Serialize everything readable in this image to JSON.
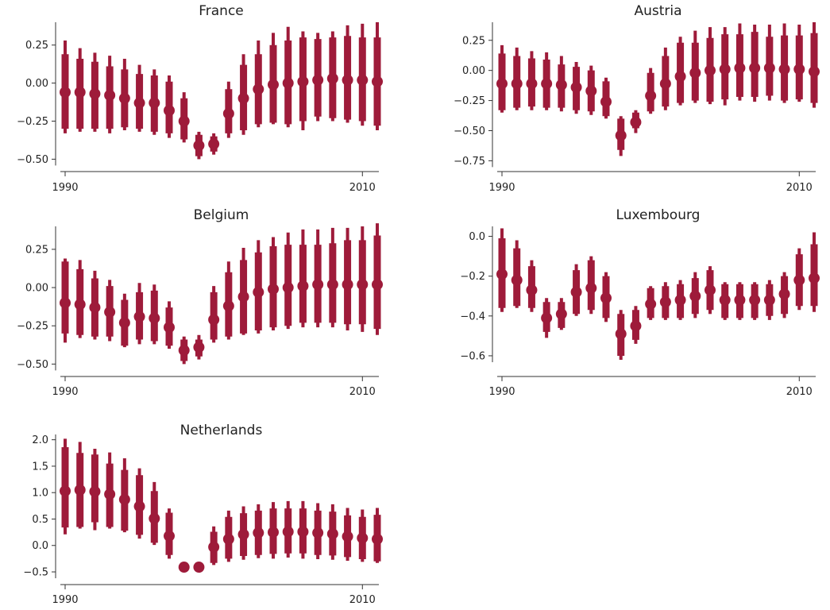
{
  "figure": {
    "accent_color": "#9e1b3a",
    "axis_color": "#333333"
  },
  "chart_data": [
    {
      "type": "scatter",
      "title": "France",
      "x": [
        1990,
        1991,
        1992,
        1993,
        1994,
        1995,
        1996,
        1997,
        1998,
        1999,
        2000,
        2001,
        2002,
        2003,
        2004,
        2005,
        2006,
        2007,
        2008,
        2009,
        2010,
        2011
      ],
      "y": [
        -0.06,
        -0.06,
        -0.07,
        -0.08,
        -0.1,
        -0.13,
        -0.13,
        -0.18,
        -0.25,
        -0.41,
        -0.4,
        -0.2,
        -0.1,
        -0.04,
        -0.01,
        0.0,
        0.01,
        0.02,
        0.03,
        0.02,
        0.02,
        0.01
      ],
      "inner_low": [
        -0.3,
        -0.3,
        -0.3,
        -0.3,
        -0.29,
        -0.3,
        -0.32,
        -0.33,
        -0.37,
        -0.48,
        -0.45,
        -0.33,
        -0.31,
        -0.27,
        -0.26,
        -0.27,
        -0.25,
        -0.22,
        -0.23,
        -0.24,
        -0.25,
        -0.28
      ],
      "inner_high": [
        0.19,
        0.16,
        0.14,
        0.11,
        0.09,
        0.06,
        0.05,
        0.01,
        -0.1,
        -0.34,
        -0.35,
        -0.04,
        0.12,
        0.19,
        0.25,
        0.28,
        0.3,
        0.29,
        0.3,
        0.31,
        0.3,
        0.3
      ],
      "outer_low": [
        -0.33,
        -0.32,
        -0.32,
        -0.33,
        -0.31,
        -0.32,
        -0.34,
        -0.36,
        -0.39,
        -0.5,
        -0.47,
        -0.36,
        -0.34,
        -0.29,
        -0.27,
        -0.29,
        -0.31,
        -0.25,
        -0.25,
        -0.26,
        -0.28,
        -0.31
      ],
      "outer_high": [
        0.28,
        0.23,
        0.2,
        0.18,
        0.16,
        0.12,
        0.09,
        0.05,
        -0.06,
        -0.32,
        -0.33,
        0.01,
        0.19,
        0.28,
        0.33,
        0.37,
        0.34,
        0.33,
        0.34,
        0.38,
        0.39,
        0.4
      ],
      "ylim": [
        -0.55,
        0.4
      ],
      "yticks": [
        -0.5,
        -0.25,
        0.0,
        0.25
      ],
      "ytick_labels": [
        "−0.50",
        "−0.25",
        "0.00",
        "0.25"
      ],
      "xtick_labels": [
        "1990",
        "2010"
      ],
      "xticks": [
        1990,
        2010
      ]
    },
    {
      "type": "scatter",
      "title": "Austria",
      "x": [
        1990,
        1991,
        1992,
        1993,
        1994,
        1995,
        1996,
        1997,
        1998,
        1999,
        2000,
        2001,
        2002,
        2003,
        2004,
        2005,
        2006,
        2007,
        2008,
        2009,
        2010,
        2011
      ],
      "y": [
        -0.11,
        -0.11,
        -0.11,
        -0.11,
        -0.12,
        -0.14,
        -0.17,
        -0.26,
        -0.54,
        -0.43,
        -0.21,
        -0.11,
        -0.05,
        -0.02,
        0.0,
        0.01,
        0.02,
        0.02,
        0.02,
        0.01,
        0.01,
        -0.01
      ],
      "inner_low": [
        -0.33,
        -0.31,
        -0.3,
        -0.31,
        -0.31,
        -0.33,
        -0.34,
        -0.38,
        -0.66,
        -0.48,
        -0.34,
        -0.3,
        -0.27,
        -0.25,
        -0.26,
        -0.24,
        -0.22,
        -0.22,
        -0.21,
        -0.25,
        -0.24,
        -0.27
      ],
      "inner_high": [
        0.14,
        0.12,
        0.1,
        0.09,
        0.05,
        0.03,
        0.0,
        -0.09,
        -0.4,
        -0.35,
        -0.02,
        0.12,
        0.23,
        0.23,
        0.27,
        0.3,
        0.3,
        0.32,
        0.28,
        0.29,
        0.29,
        0.31
      ],
      "outer_low": [
        -0.35,
        -0.33,
        -0.33,
        -0.33,
        -0.34,
        -0.36,
        -0.37,
        -0.4,
        -0.71,
        -0.52,
        -0.36,
        -0.33,
        -0.29,
        -0.27,
        -0.28,
        -0.29,
        -0.25,
        -0.26,
        -0.25,
        -0.27,
        -0.26,
        -0.31
      ],
      "outer_high": [
        0.21,
        0.19,
        0.16,
        0.15,
        0.12,
        0.07,
        0.04,
        -0.06,
        -0.38,
        -0.33,
        0.02,
        0.19,
        0.28,
        0.33,
        0.36,
        0.36,
        0.39,
        0.38,
        0.38,
        0.39,
        0.38,
        0.4
      ],
      "ylim": [
        -0.8,
        0.4
      ],
      "yticks": [
        -0.75,
        -0.5,
        -0.25,
        0.0,
        0.25
      ],
      "ytick_labels": [
        "−0.75",
        "−0.50",
        "−0.25",
        "0.00",
        "0.25"
      ],
      "xtick_labels": [
        "1990",
        "2010"
      ],
      "xticks": [
        1990,
        2010
      ]
    },
    {
      "type": "scatter",
      "title": "Belgium",
      "x": [
        1990,
        1991,
        1992,
        1993,
        1994,
        1995,
        1996,
        1997,
        1998,
        1999,
        2000,
        2001,
        2002,
        2003,
        2004,
        2005,
        2006,
        2007,
        2008,
        2009,
        2010,
        2011
      ],
      "y": [
        -0.1,
        -0.11,
        -0.13,
        -0.16,
        -0.23,
        -0.19,
        -0.2,
        -0.26,
        -0.41,
        -0.39,
        -0.21,
        -0.12,
        -0.06,
        -0.03,
        -0.01,
        0.0,
        0.01,
        0.02,
        0.02,
        0.02,
        0.02,
        0.02
      ],
      "inner_low": [
        -0.3,
        -0.31,
        -0.32,
        -0.32,
        -0.38,
        -0.34,
        -0.35,
        -0.38,
        -0.48,
        -0.45,
        -0.34,
        -0.32,
        -0.3,
        -0.28,
        -0.26,
        -0.25,
        -0.23,
        -0.23,
        -0.23,
        -0.24,
        -0.24,
        -0.27
      ],
      "inner_high": [
        0.17,
        0.12,
        0.06,
        0.01,
        -0.08,
        -0.03,
        -0.02,
        -0.13,
        -0.34,
        -0.34,
        -0.03,
        0.1,
        0.18,
        0.23,
        0.27,
        0.28,
        0.28,
        0.28,
        0.29,
        0.31,
        0.31,
        0.34
      ],
      "outer_low": [
        -0.36,
        -0.33,
        -0.34,
        -0.35,
        -0.39,
        -0.37,
        -0.37,
        -0.4,
        -0.5,
        -0.47,
        -0.36,
        -0.34,
        -0.31,
        -0.3,
        -0.28,
        -0.27,
        -0.26,
        -0.26,
        -0.26,
        -0.28,
        -0.29,
        -0.31
      ],
      "outer_high": [
        0.19,
        0.18,
        0.11,
        0.05,
        -0.04,
        0.03,
        0.02,
        -0.09,
        -0.32,
        -0.31,
        0.01,
        0.17,
        0.26,
        0.31,
        0.33,
        0.36,
        0.38,
        0.38,
        0.39,
        0.39,
        0.4,
        0.42
      ],
      "ylim": [
        -0.55,
        0.4
      ],
      "yticks": [
        -0.5,
        -0.25,
        0.0,
        0.25
      ],
      "ytick_labels": [
        "−0.50",
        "−0.25",
        "0.00",
        "0.25"
      ],
      "xtick_labels": [
        "1990",
        "2010"
      ],
      "xticks": [
        1990,
        2010
      ]
    },
    {
      "type": "scatter",
      "title": "Luxembourg",
      "x": [
        1990,
        1991,
        1992,
        1993,
        1994,
        1995,
        1996,
        1997,
        1998,
        1999,
        2000,
        2001,
        2002,
        2003,
        2004,
        2005,
        2006,
        2007,
        2008,
        2009,
        2010,
        2011
      ],
      "y": [
        -0.19,
        -0.22,
        -0.27,
        -0.41,
        -0.39,
        -0.28,
        -0.26,
        -0.31,
        -0.49,
        -0.45,
        -0.34,
        -0.33,
        -0.32,
        -0.3,
        -0.27,
        -0.32,
        -0.32,
        -0.32,
        -0.32,
        -0.29,
        -0.22,
        -0.21
      ],
      "inner_low": [
        -0.36,
        -0.35,
        -0.36,
        -0.48,
        -0.46,
        -0.39,
        -0.37,
        -0.41,
        -0.6,
        -0.52,
        -0.41,
        -0.41,
        -0.41,
        -0.39,
        -0.37,
        -0.41,
        -0.41,
        -0.41,
        -0.4,
        -0.39,
        -0.35,
        -0.35
      ],
      "inner_high": [
        -0.01,
        -0.06,
        -0.15,
        -0.33,
        -0.33,
        -0.17,
        -0.12,
        -0.2,
        -0.39,
        -0.37,
        -0.26,
        -0.25,
        -0.24,
        -0.21,
        -0.17,
        -0.24,
        -0.24,
        -0.24,
        -0.24,
        -0.2,
        -0.09,
        -0.04
      ],
      "outer_low": [
        -0.38,
        -0.36,
        -0.38,
        -0.51,
        -0.47,
        -0.4,
        -0.39,
        -0.43,
        -0.62,
        -0.54,
        -0.42,
        -0.42,
        -0.42,
        -0.41,
        -0.39,
        -0.42,
        -0.42,
        -0.42,
        -0.42,
        -0.41,
        -0.37,
        -0.38
      ],
      "outer_high": [
        0.04,
        -0.02,
        -0.12,
        -0.31,
        -0.31,
        -0.14,
        -0.1,
        -0.18,
        -0.37,
        -0.35,
        -0.25,
        -0.23,
        -0.22,
        -0.18,
        -0.15,
        -0.23,
        -0.23,
        -0.23,
        -0.22,
        -0.18,
        -0.06,
        0.02
      ],
      "ylim": [
        -0.68,
        0.05
      ],
      "yticks": [
        -0.6,
        -0.4,
        -0.2,
        0.0
      ],
      "ytick_labels": [
        "−0.6",
        "−0.4",
        "−0.2",
        "0.0"
      ],
      "xtick_labels": [
        "1990",
        "2010"
      ],
      "xticks": [
        1990,
        2010
      ]
    },
    {
      "type": "scatter",
      "title": "Netherlands",
      "x": [
        1990,
        1991,
        1992,
        1993,
        1994,
        1995,
        1996,
        1997,
        1998,
        1999,
        2000,
        2001,
        2002,
        2003,
        2004,
        2005,
        2006,
        2007,
        2008,
        2009,
        2010,
        2011
      ],
      "y": [
        1.03,
        1.05,
        1.02,
        0.97,
        0.87,
        0.74,
        0.51,
        0.18,
        -0.41,
        -0.41,
        -0.03,
        0.12,
        0.21,
        0.24,
        0.25,
        0.26,
        0.26,
        0.24,
        0.22,
        0.17,
        0.14,
        0.12
      ],
      "inner_low": [
        0.34,
        0.35,
        0.44,
        0.35,
        0.28,
        0.2,
        0.05,
        -0.18,
        null,
        null,
        -0.33,
        -0.25,
        -0.2,
        -0.18,
        -0.16,
        -0.15,
        -0.15,
        -0.18,
        -0.19,
        -0.22,
        -0.26,
        -0.3
      ],
      "inner_high": [
        1.86,
        1.75,
        1.72,
        1.55,
        1.43,
        1.33,
        1.03,
        0.62,
        null,
        null,
        0.26,
        0.54,
        0.61,
        0.66,
        0.7,
        0.7,
        0.7,
        0.66,
        0.64,
        0.57,
        0.54,
        0.58
      ],
      "outer_low": [
        0.21,
        0.32,
        0.29,
        0.32,
        0.25,
        0.13,
        0.01,
        -0.25,
        null,
        null,
        -0.37,
        -0.31,
        -0.27,
        -0.24,
        -0.25,
        -0.23,
        -0.25,
        -0.26,
        -0.27,
        -0.29,
        -0.31,
        -0.33
      ],
      "outer_high": [
        2.02,
        1.96,
        1.83,
        1.76,
        1.65,
        1.46,
        1.2,
        0.7,
        null,
        null,
        0.36,
        0.66,
        0.74,
        0.78,
        0.82,
        0.84,
        0.84,
        0.8,
        0.78,
        0.71,
        0.68,
        0.71
      ],
      "ylim": [
        -0.65,
        2.1
      ],
      "yticks": [
        -0.5,
        0.0,
        0.5,
        1.0,
        1.5,
        2.0
      ],
      "ytick_labels": [
        "−0.5",
        "0.0",
        "0.5",
        "1.0",
        "1.5",
        "2.0"
      ],
      "xtick_labels": [
        "1990",
        "2010"
      ],
      "xticks": [
        1990,
        2010
      ]
    }
  ]
}
